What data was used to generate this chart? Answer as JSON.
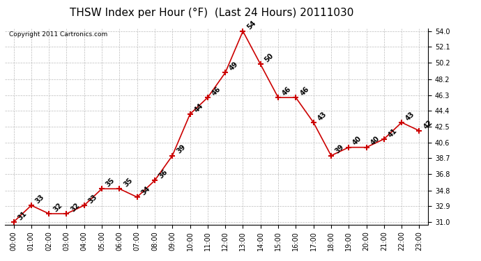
{
  "title": "THSW Index per Hour (°F)  (Last 24 Hours) 20111030",
  "copyright": "Copyright 2011 Cartronics.com",
  "hours": [
    "00:00",
    "01:00",
    "02:00",
    "03:00",
    "04:00",
    "05:00",
    "06:00",
    "07:00",
    "08:00",
    "09:00",
    "10:00",
    "11:00",
    "12:00",
    "13:00",
    "14:00",
    "15:00",
    "16:00",
    "17:00",
    "18:00",
    "19:00",
    "20:00",
    "21:00",
    "22:00",
    "23:00"
  ],
  "values": [
    31,
    33,
    32,
    32,
    33,
    35,
    35,
    34,
    36,
    39,
    44,
    46,
    49,
    54,
    50,
    46,
    46,
    43,
    39,
    40,
    40,
    41,
    43,
    42
  ],
  "ylim_min": 31.0,
  "ylim_max": 54.0,
  "yticks": [
    31.0,
    32.9,
    34.8,
    36.8,
    38.7,
    40.6,
    42.5,
    44.4,
    46.3,
    48.2,
    50.2,
    52.1,
    54.0
  ],
  "line_color": "#cc0000",
  "marker": "+",
  "marker_color": "#cc0000",
  "background_color": "#ffffff",
  "grid_color": "#bbbbbb",
  "title_fontsize": 11,
  "label_fontsize": 7,
  "annotation_fontsize": 7,
  "copyright_fontsize": 6.5
}
